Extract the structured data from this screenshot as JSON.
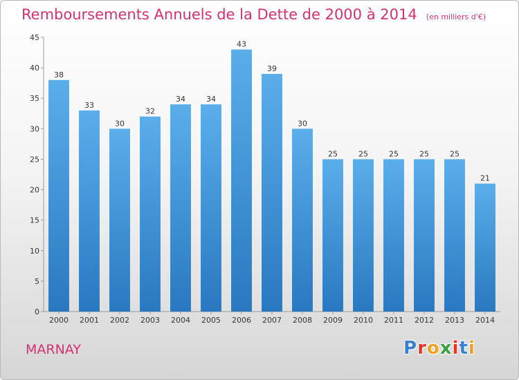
{
  "header": {
    "title": "Remboursements Annuels de la Dette de 2000 à 2014",
    "unit": "(en milliers d'€)"
  },
  "footer": {
    "commune": "MARNAY",
    "logo": "Proxiti"
  },
  "colors": {
    "title": "#d4326e",
    "bar_top": "#5aaeea",
    "bar_bottom": "#2a78c0",
    "logo_letters": [
      "#3a7fd0",
      "#e8332a",
      "#f0a020",
      "#3aa040",
      "#e8332a",
      "#3a7fd0",
      "#f0a020"
    ]
  },
  "chart_data": {
    "type": "bar",
    "title": "Remboursements Annuels de la Dette de 2000 à 2014",
    "categories": [
      "2000",
      "2001",
      "2002",
      "2003",
      "2004",
      "2005",
      "2006",
      "2007",
      "2008",
      "2009",
      "2010",
      "2011",
      "2012",
      "2013",
      "2014"
    ],
    "values": [
      38,
      33,
      30,
      32,
      34,
      34,
      43,
      39,
      30,
      25,
      25,
      25,
      25,
      25,
      21
    ],
    "ylim": [
      0,
      45
    ],
    "yticks": [
      0,
      5,
      10,
      15,
      20,
      25,
      30,
      35,
      40,
      45
    ],
    "grid": false,
    "xlabel": "",
    "ylabel": ""
  }
}
